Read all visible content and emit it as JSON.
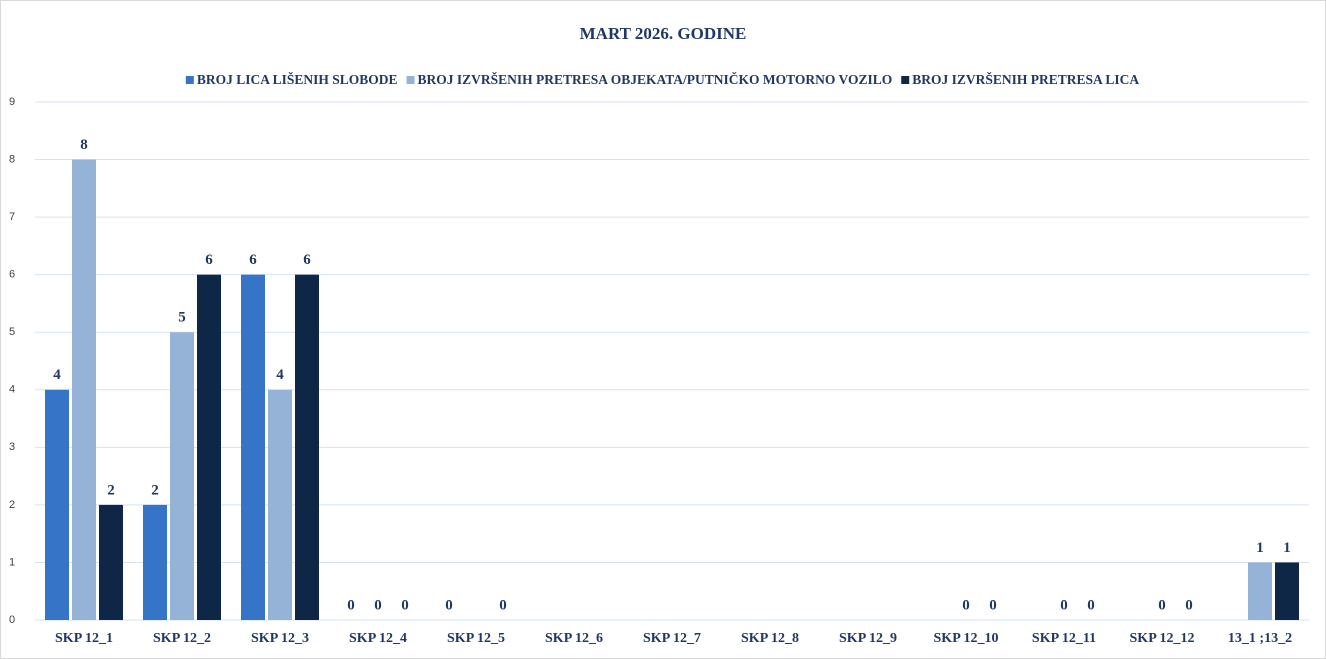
{
  "chart_data": {
    "type": "bar",
    "title": "MART 2026. GODINE",
    "categories": [
      "SKP 12_1",
      "SKP 12_2",
      "SKP 12_3",
      "SKP 12_4",
      "SKP 12_5",
      "SKP 12_6",
      "SKP 12_7",
      "SKP 12_8",
      "SKP 12_9",
      "SKP 12_10",
      "SKP 12_11",
      "SKP 12_12",
      "13_1 ;13_2"
    ],
    "series": [
      {
        "name": "BROJ LICA LIŠENIH SLOBODE",
        "color": "#3674c8",
        "values": [
          4,
          2,
          6,
          0,
          0,
          null,
          null,
          null,
          null,
          null,
          null,
          null,
          null
        ]
      },
      {
        "name": "BROJ IZVRŠENIH PRETRESA OBJEKATA/PUTNIČKO MOTORNO VOZILO",
        "color": "#95b3d7",
        "values": [
          8,
          5,
          4,
          0,
          null,
          null,
          null,
          null,
          null,
          0,
          0,
          0,
          1
        ]
      },
      {
        "name": "BROJ IZVRŠENIH PRETRESA LICA",
        "color": "#0f2746",
        "values": [
          2,
          6,
          6,
          0,
          0,
          null,
          null,
          null,
          null,
          0,
          0,
          0,
          1
        ]
      }
    ],
    "ylim": [
      0,
      9
    ],
    "yticks": [
      0,
      1,
      2,
      3,
      4,
      5,
      6,
      7,
      8,
      9
    ],
    "grid": true,
    "legend": "top"
  }
}
